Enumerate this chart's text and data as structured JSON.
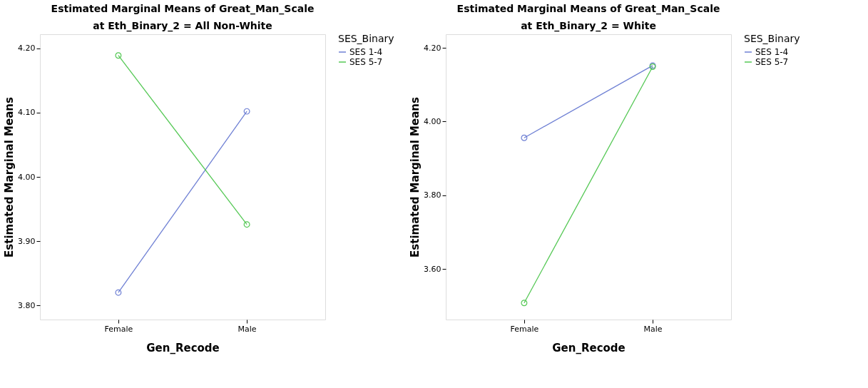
{
  "chart_data": [
    {
      "type": "line",
      "title": "Estimated Marginal Means of Great_Man_Scale",
      "subtitle": "at Eth_Binary_2 = All Non-White",
      "xlabel": "Gen_Recode",
      "ylabel": "Estimated Marginal Means",
      "legend_title": "SES_Binary",
      "legend": "top right",
      "marker": "circle",
      "line_style": "solid",
      "grid": false,
      "categories": [
        "Female",
        "Male"
      ],
      "ylim": [
        3.778,
        4.222
      ],
      "yticks": [
        {
          "value": 3.8,
          "label": "3.80"
        },
        {
          "value": 3.9,
          "label": "3.90"
        },
        {
          "value": 4.0,
          "label": "4.00"
        },
        {
          "value": 4.1,
          "label": "4.10"
        },
        {
          "value": 4.2,
          "label": "4.20"
        }
      ],
      "series": [
        {
          "name": "SES 1-4",
          "color": "#6f80d4",
          "values": [
            3.82,
            4.102
          ]
        },
        {
          "name": "SES 5-7",
          "color": "#55c855",
          "values": [
            4.189,
            3.926
          ]
        }
      ]
    },
    {
      "type": "line",
      "title": "Estimated Marginal Means of Great_Man_Scale",
      "subtitle": "at Eth_Binary_2 = White",
      "xlabel": "Gen_Recode",
      "ylabel": "Estimated Marginal Means",
      "legend_title": "SES_Binary",
      "legend": "top right",
      "marker": "circle",
      "line_style": "solid",
      "grid": false,
      "categories": [
        "Female",
        "Male"
      ],
      "ylim": [
        3.463,
        4.237
      ],
      "yticks": [
        {
          "value": 3.6,
          "label": "3.60"
        },
        {
          "value": 3.8,
          "label": "3.80"
        },
        {
          "value": 4.0,
          "label": "4.00"
        },
        {
          "value": 4.2,
          "label": "4.20"
        }
      ],
      "series": [
        {
          "name": "SES 1-4",
          "color": "#6f80d4",
          "values": [
            3.956,
            4.152
          ]
        },
        {
          "name": "SES 5-7",
          "color": "#55c855",
          "values": [
            3.508,
            4.149
          ]
        }
      ]
    }
  ]
}
